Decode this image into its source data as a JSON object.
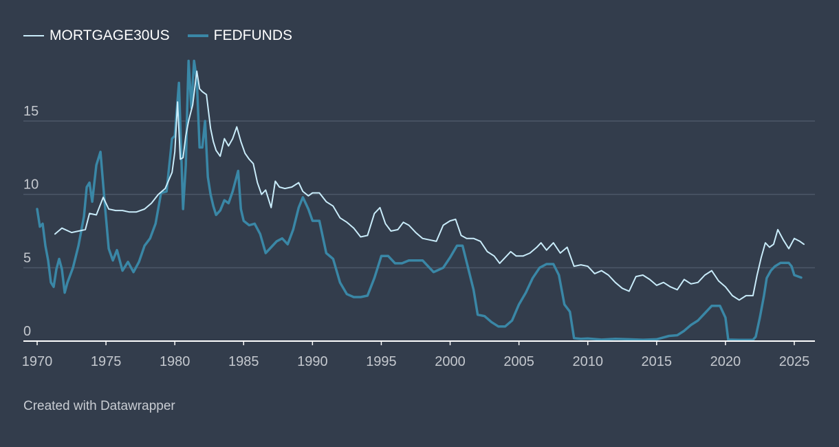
{
  "colors": {
    "background": "#333d4c",
    "gridline": "#4d5868",
    "baseline": "#ffffff",
    "mortgage": "#c9ecfa",
    "fedfunds": "#3a87a6"
  },
  "footer": {
    "credit": "Created with Datawrapper"
  },
  "chart_data": {
    "type": "line",
    "title": "",
    "xlabel": "",
    "ylabel": "",
    "xlim": [
      1969,
      2026.5
    ],
    "ylim": [
      0,
      19.5
    ],
    "x_ticks": [
      1970,
      1975,
      1980,
      1985,
      1990,
      1995,
      2000,
      2005,
      2010,
      2015,
      2020,
      2025
    ],
    "x_tick_labels": [
      "1970",
      "1975",
      "1980",
      "1985",
      "1990",
      "1995",
      "2000",
      "2005",
      "2010",
      "2015",
      "2020",
      "2025"
    ],
    "y_ticks": [
      0,
      5,
      10,
      15
    ],
    "y_tick_labels": [
      "0",
      "5",
      "10",
      "15"
    ],
    "grid": true,
    "legend_position": "top-left",
    "series": [
      {
        "name": "MORTGAGE30US",
        "label": "MORTGAGE30US",
        "x": [
          1971.3,
          1971.8,
          1972.5,
          1973.0,
          1973.5,
          1973.8,
          1974.3,
          1974.8,
          1975.2,
          1975.7,
          1976.2,
          1976.7,
          1977.2,
          1977.8,
          1978.3,
          1978.8,
          1979.3,
          1979.8,
          1980.0,
          1980.2,
          1980.4,
          1980.6,
          1980.8,
          1981.0,
          1981.3,
          1981.6,
          1981.8,
          1982.0,
          1982.3,
          1982.6,
          1982.8,
          1983.0,
          1983.3,
          1983.6,
          1983.9,
          1984.2,
          1984.5,
          1984.8,
          1985.1,
          1985.4,
          1985.7,
          1986.0,
          1986.3,
          1986.6,
          1987.0,
          1987.3,
          1987.6,
          1988.0,
          1988.5,
          1989.0,
          1989.3,
          1989.7,
          1990.0,
          1990.5,
          1991.0,
          1991.5,
          1992.0,
          1992.5,
          1993.0,
          1993.5,
          1994.0,
          1994.5,
          1994.9,
          1995.3,
          1995.7,
          1996.2,
          1996.6,
          1997.0,
          1997.5,
          1998.0,
          1998.5,
          1999.0,
          1999.5,
          2000.0,
          2000.4,
          2000.8,
          2001.2,
          2001.7,
          2002.2,
          2002.7,
          2003.2,
          2003.6,
          2004.0,
          2004.4,
          2004.8,
          2005.3,
          2005.8,
          2006.3,
          2006.6,
          2007.0,
          2007.5,
          2008.0,
          2008.5,
          2009.0,
          2009.5,
          2010.0,
          2010.5,
          2011.0,
          2011.5,
          2012.0,
          2012.5,
          2013.0,
          2013.5,
          2014.0,
          2014.5,
          2015.0,
          2015.5,
          2016.0,
          2016.5,
          2017.0,
          2017.5,
          2018.0,
          2018.5,
          2019.0,
          2019.5,
          2020.0,
          2020.5,
          2021.0,
          2021.5,
          2022.0,
          2022.3,
          2022.6,
          2022.9,
          2023.2,
          2023.5,
          2023.8,
          2024.2,
          2024.6,
          2025.0,
          2025.4,
          2025.7
        ],
        "y": [
          7.3,
          7.7,
          7.4,
          7.5,
          7.6,
          8.7,
          8.6,
          9.8,
          9.0,
          8.9,
          8.9,
          8.8,
          8.8,
          9.0,
          9.4,
          10.0,
          10.4,
          11.5,
          12.9,
          16.3,
          12.4,
          12.5,
          14.0,
          15.0,
          16.1,
          18.4,
          17.2,
          17.0,
          16.8,
          14.5,
          13.6,
          13.0,
          12.6,
          13.8,
          13.3,
          13.8,
          14.6,
          13.6,
          12.8,
          12.4,
          12.1,
          10.8,
          10.0,
          10.3,
          9.1,
          10.9,
          10.5,
          10.4,
          10.5,
          10.8,
          10.2,
          9.9,
          10.1,
          10.1,
          9.5,
          9.2,
          8.4,
          8.1,
          7.7,
          7.1,
          7.2,
          8.7,
          9.1,
          8.0,
          7.5,
          7.6,
          8.1,
          7.9,
          7.4,
          7.0,
          6.9,
          6.8,
          7.9,
          8.2,
          8.3,
          7.2,
          7.0,
          7.0,
          6.8,
          6.1,
          5.8,
          5.3,
          5.7,
          6.1,
          5.8,
          5.8,
          6.0,
          6.4,
          6.7,
          6.2,
          6.7,
          6.0,
          6.4,
          5.1,
          5.2,
          5.1,
          4.6,
          4.8,
          4.5,
          4.0,
          3.6,
          3.4,
          4.4,
          4.5,
          4.2,
          3.8,
          4.0,
          3.7,
          3.5,
          4.2,
          3.9,
          4.0,
          4.5,
          4.8,
          4.1,
          3.7,
          3.1,
          2.8,
          3.1,
          3.1,
          4.5,
          5.7,
          6.7,
          6.4,
          6.6,
          7.6,
          6.9,
          6.3,
          7.0,
          6.8,
          6.6
        ]
      },
      {
        "name": "FEDFUNDS",
        "label": "FEDFUNDS",
        "x": [
          1970.0,
          1970.2,
          1970.4,
          1970.6,
          1970.8,
          1971.0,
          1971.2,
          1971.4,
          1971.6,
          1971.8,
          1972.0,
          1972.2,
          1972.6,
          1973.0,
          1973.4,
          1973.6,
          1973.8,
          1974.0,
          1974.3,
          1974.6,
          1974.9,
          1975.2,
          1975.5,
          1975.8,
          1976.2,
          1976.6,
          1977.0,
          1977.4,
          1977.8,
          1978.2,
          1978.6,
          1979.0,
          1979.4,
          1979.8,
          1980.0,
          1980.3,
          1980.6,
          1980.8,
          1980.9,
          1981.0,
          1981.2,
          1981.4,
          1981.6,
          1981.8,
          1982.0,
          1982.2,
          1982.4,
          1982.6,
          1982.8,
          1983.0,
          1983.3,
          1983.6,
          1983.9,
          1984.2,
          1984.6,
          1984.8,
          1985.0,
          1985.4,
          1985.8,
          1986.2,
          1986.6,
          1987.0,
          1987.4,
          1987.8,
          1988.2,
          1988.6,
          1989.0,
          1989.3,
          1989.7,
          1990.0,
          1990.5,
          1991.0,
          1991.5,
          1992.0,
          1992.5,
          1993.0,
          1993.5,
          1994.0,
          1994.5,
          1995.0,
          1995.5,
          1996.0,
          1996.5,
          1997.0,
          1998.0,
          1998.8,
          1999.5,
          2000.0,
          2000.5,
          2000.9,
          2001.3,
          2001.7,
          2002.0,
          2002.5,
          2003.0,
          2003.5,
          2004.0,
          2004.5,
          2005.0,
          2005.5,
          2006.0,
          2006.5,
          2007.0,
          2007.5,
          2007.9,
          2008.3,
          2008.7,
          2009.0,
          2009.5,
          2010.0,
          2011.0,
          2012.0,
          2013.0,
          2014.0,
          2015.0,
          2015.9,
          2016.5,
          2017.0,
          2017.5,
          2018.0,
          2018.5,
          2019.0,
          2019.6,
          2020.0,
          2020.2,
          2021.0,
          2022.0,
          2022.2,
          2022.5,
          2022.8,
          2023.0,
          2023.3,
          2023.6,
          2024.0,
          2024.6,
          2024.8,
          2025.0,
          2025.5
        ],
        "y": [
          9.0,
          7.8,
          8.0,
          6.5,
          5.5,
          4.0,
          3.7,
          4.9,
          5.6,
          4.9,
          3.3,
          4.0,
          5.0,
          6.5,
          8.5,
          10.5,
          10.8,
          9.5,
          12.0,
          12.9,
          9.5,
          6.3,
          5.5,
          6.2,
          4.8,
          5.4,
          4.7,
          5.4,
          6.5,
          7.0,
          8.0,
          10.1,
          10.2,
          13.8,
          14.0,
          17.6,
          9.0,
          12.0,
          15.8,
          19.1,
          15.9,
          19.1,
          17.8,
          13.2,
          13.2,
          15.0,
          11.2,
          10.0,
          9.2,
          8.6,
          8.9,
          9.6,
          9.4,
          10.2,
          11.6,
          9.0,
          8.2,
          7.9,
          8.0,
          7.3,
          6.0,
          6.4,
          6.8,
          7.0,
          6.6,
          7.6,
          9.1,
          9.8,
          9.0,
          8.2,
          8.2,
          6.0,
          5.6,
          4.0,
          3.2,
          3.0,
          3.0,
          3.1,
          4.3,
          5.8,
          5.8,
          5.3,
          5.3,
          5.5,
          5.5,
          4.7,
          5.0,
          5.7,
          6.5,
          6.5,
          5.0,
          3.5,
          1.8,
          1.7,
          1.3,
          1.0,
          1.0,
          1.4,
          2.5,
          3.3,
          4.3,
          5.0,
          5.25,
          5.25,
          4.5,
          2.5,
          2.0,
          0.2,
          0.15,
          0.18,
          0.1,
          0.15,
          0.12,
          0.09,
          0.12,
          0.35,
          0.4,
          0.7,
          1.1,
          1.4,
          1.9,
          2.4,
          2.4,
          1.6,
          0.1,
          0.08,
          0.08,
          0.3,
          1.6,
          3.1,
          4.3,
          4.8,
          5.1,
          5.33,
          5.33,
          5.1,
          4.5,
          4.33
        ]
      }
    ]
  }
}
